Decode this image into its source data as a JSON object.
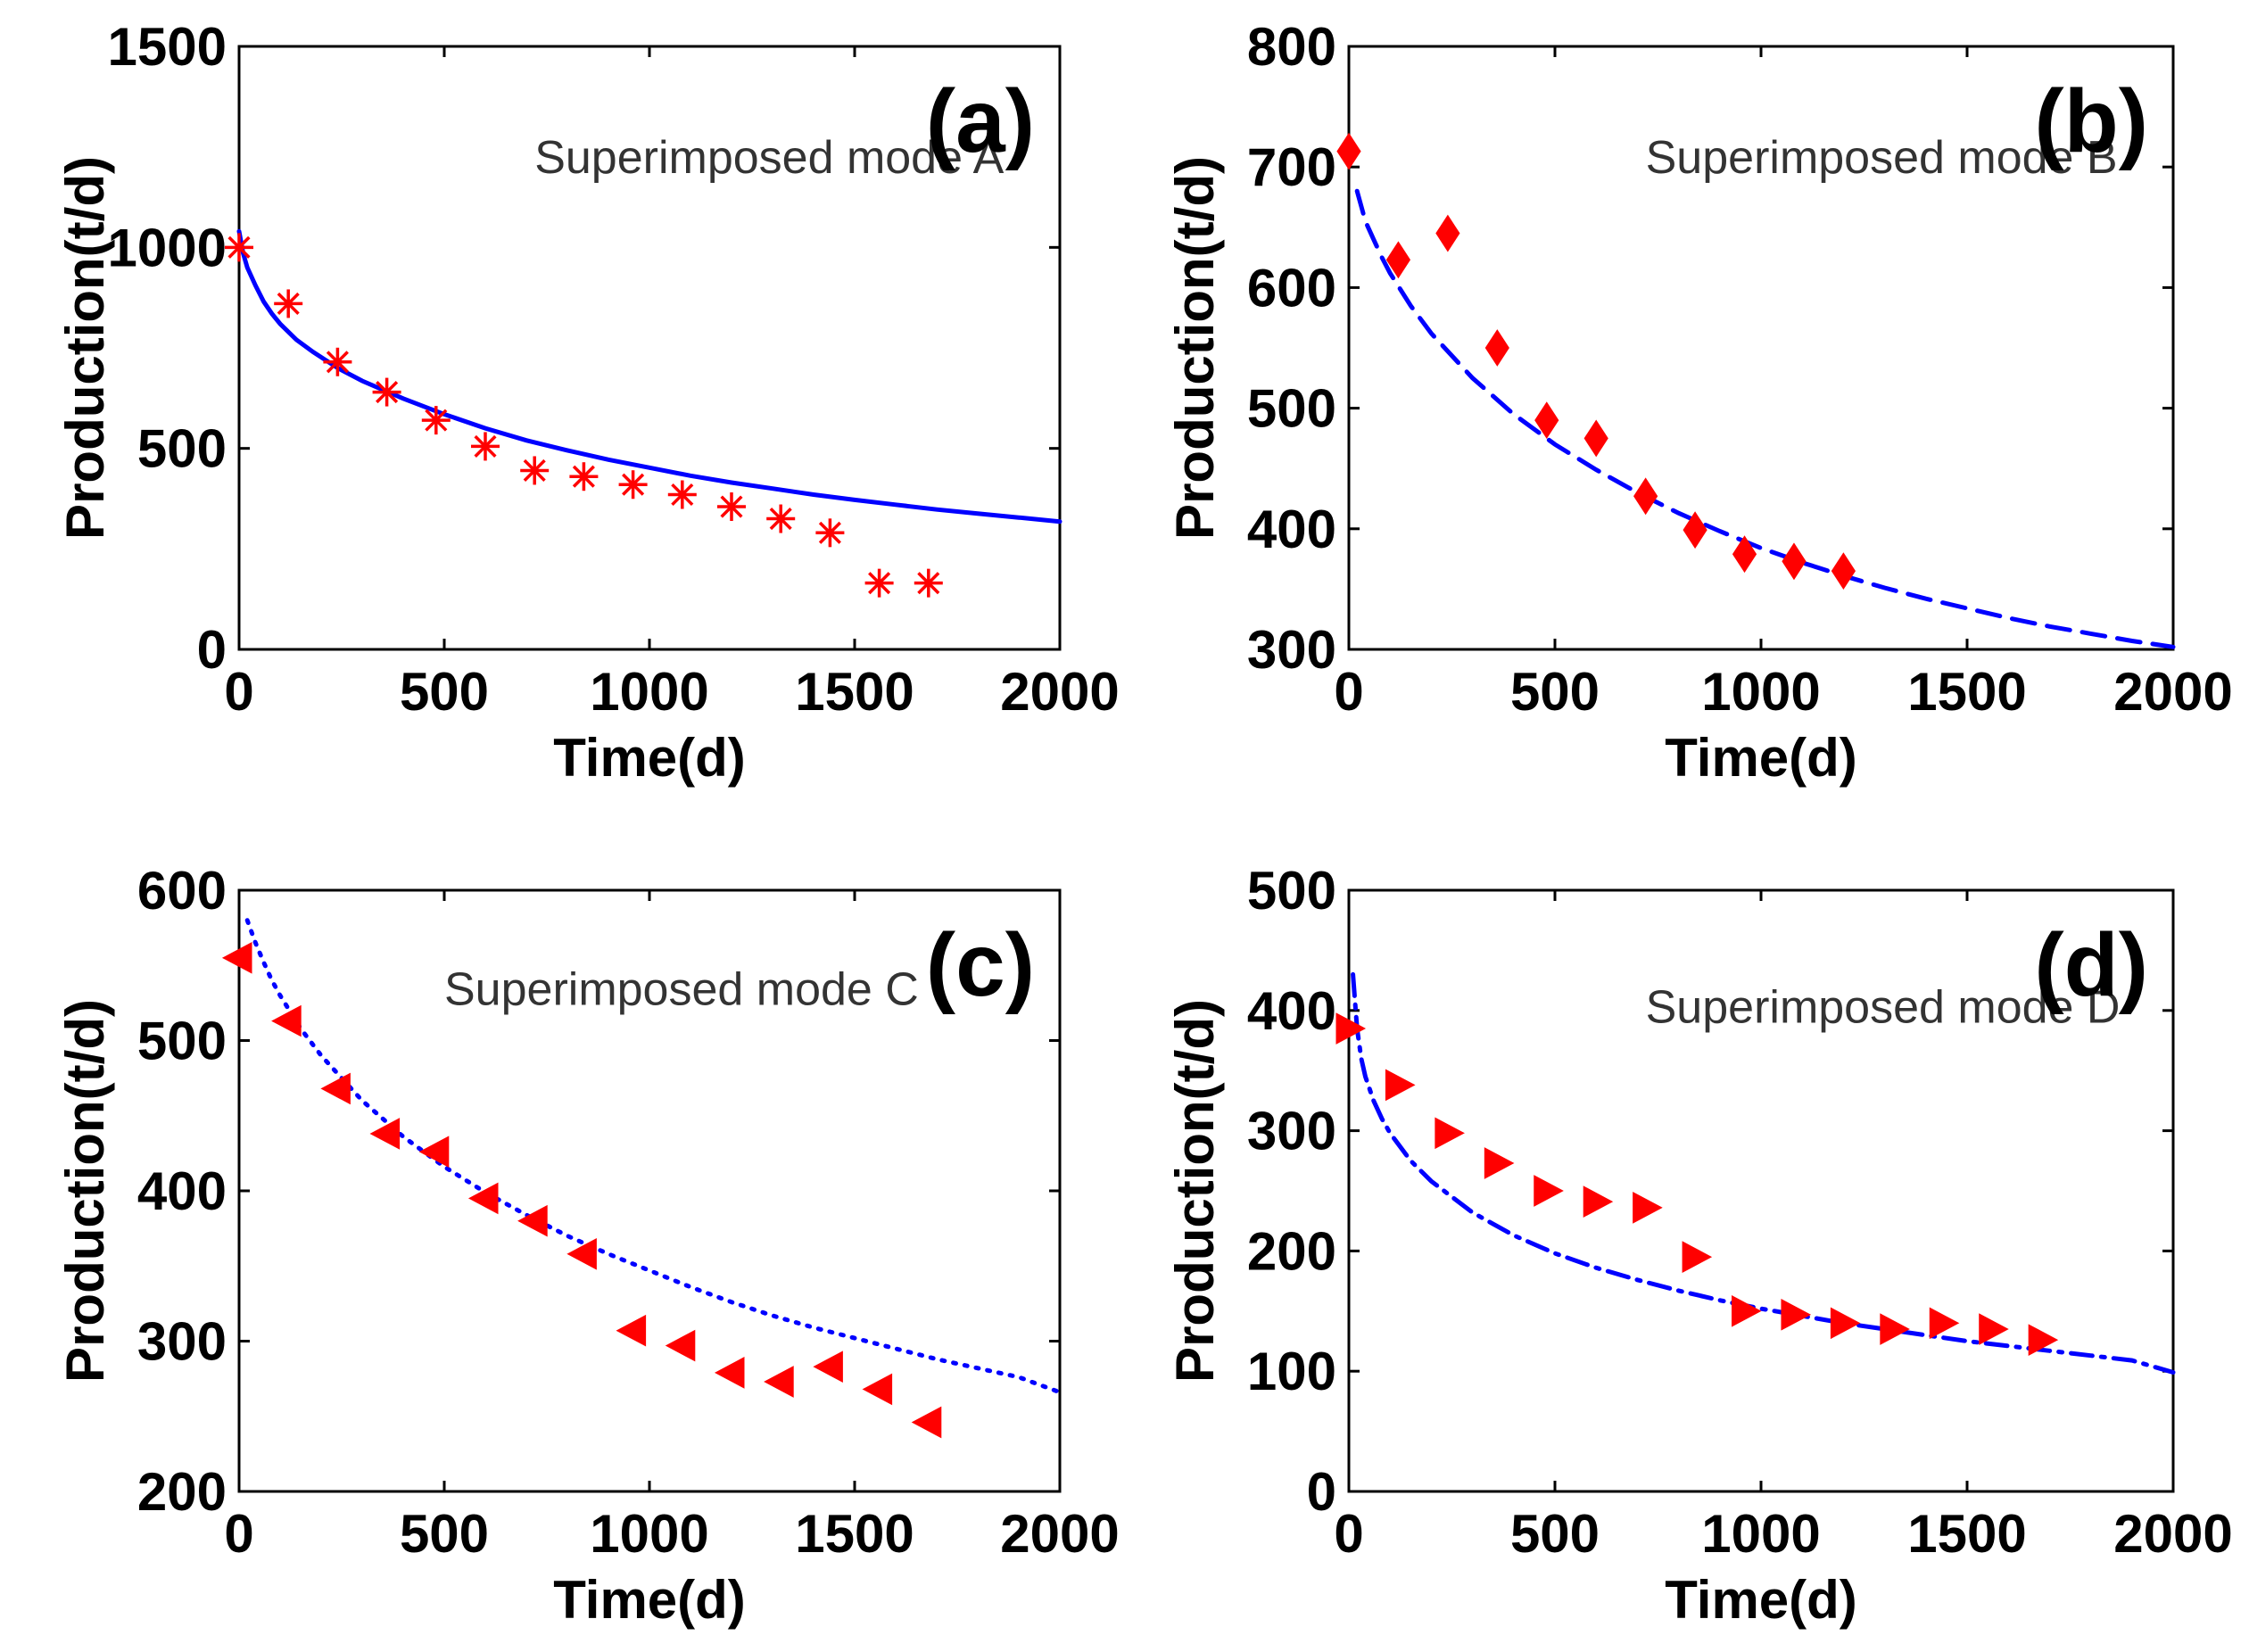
{
  "chart_data": [
    {
      "type": "scatter",
      "panel": "(a)",
      "annotation": "Superimposed mode A",
      "xlabel": "Time(d)",
      "ylabel": "Production(t/d)",
      "xlim": [
        0,
        2000
      ],
      "ylim": [
        0,
        1500
      ],
      "xticks": [
        0,
        500,
        1000,
        1500,
        2000
      ],
      "yticks": [
        0,
        500,
        1000,
        1500
      ],
      "grid": false,
      "observed": {
        "marker": "asterisk",
        "color": "#ff0000",
        "x": [
          0,
          120,
          240,
          360,
          480,
          600,
          720,
          840,
          960,
          1080,
          1200,
          1320,
          1440,
          1560,
          1680
        ],
        "y": [
          1000,
          860,
          715,
          640,
          570,
          505,
          445,
          430,
          410,
          385,
          355,
          325,
          290,
          165,
          165
        ]
      },
      "fit": {
        "style": "solid",
        "color": "#0000ff",
        "x": [
          0,
          10,
          20,
          40,
          60,
          80,
          100,
          140,
          180,
          240,
          300,
          400,
          500,
          600,
          700,
          800,
          900,
          1000,
          1100,
          1200,
          1300,
          1400,
          1500,
          1600,
          1700,
          1800,
          1900,
          2000
        ],
        "y": [
          1040,
          985,
          950,
          905,
          865,
          835,
          810,
          770,
          740,
          700,
          668,
          624,
          585,
          550,
          520,
          495,
          472,
          452,
          432,
          415,
          400,
          385,
          372,
          360,
          348,
          338,
          328,
          318
        ]
      }
    },
    {
      "type": "scatter",
      "panel": "(b)",
      "annotation": "Superimposed mode B",
      "xlabel": "Time(d)",
      "ylabel": "Production(t/d)",
      "xlim": [
        0,
        2000
      ],
      "ylim": [
        300,
        800
      ],
      "xticks": [
        0,
        500,
        1000,
        1500,
        2000
      ],
      "yticks": [
        300,
        400,
        500,
        600,
        700,
        800
      ],
      "grid": false,
      "observed": {
        "marker": "diamond",
        "color": "#ff0000",
        "x": [
          0,
          120,
          240,
          360,
          480,
          600,
          720,
          840,
          960,
          1080,
          1200
        ],
        "y": [
          713,
          623,
          645,
          550,
          490,
          475,
          427,
          399,
          379,
          373,
          365
        ]
      },
      "fit": {
        "style": "dashed",
        "color": "#0000ff",
        "x": [
          20,
          40,
          60,
          80,
          100,
          150,
          200,
          300,
          400,
          500,
          600,
          700,
          800,
          900,
          1000,
          1100,
          1200,
          1300,
          1400,
          1500,
          1600,
          1700,
          1800,
          1900,
          2000
        ],
        "y": [
          680,
          655,
          640,
          625,
          612,
          585,
          562,
          525,
          495,
          470,
          449,
          430,
          413,
          398,
          384,
          372,
          361,
          351,
          342,
          334,
          326,
          319,
          313,
          307,
          302
        ]
      }
    },
    {
      "type": "scatter",
      "panel": "(c)",
      "annotation": "Superimposed mode C",
      "xlabel": "Time(d)",
      "ylabel": "Production(t/d)",
      "xlim": [
        0,
        2000
      ],
      "ylim": [
        200,
        600
      ],
      "xticks": [
        0,
        500,
        1000,
        1500,
        2000
      ],
      "yticks": [
        200,
        300,
        400,
        500,
        600
      ],
      "grid": false,
      "observed": {
        "marker": "triangle-left",
        "color": "#ff0000",
        "x": [
          0,
          120,
          240,
          360,
          480,
          600,
          720,
          840,
          960,
          1080,
          1200,
          1320,
          1440,
          1560,
          1680
        ],
        "y": [
          555,
          513,
          468,
          438,
          426,
          395,
          380,
          358,
          307,
          297,
          279,
          273,
          283,
          268,
          246
        ]
      },
      "fit": {
        "style": "dotted",
        "color": "#0000ff",
        "x": [
          20,
          40,
          60,
          80,
          100,
          150,
          200,
          300,
          400,
          500,
          600,
          700,
          800,
          900,
          1000,
          1100,
          1200,
          1300,
          1400,
          1500,
          1600,
          1700,
          1800,
          1900,
          2000
        ],
        "y": [
          580,
          565,
          552,
          540,
          530,
          508,
          490,
          460,
          436,
          416,
          399,
          384,
          370,
          358,
          347,
          336,
          326,
          317,
          309,
          302,
          295,
          288,
          282,
          276,
          266
        ]
      }
    },
    {
      "type": "scatter",
      "panel": "(d)",
      "annotation": "Superimposed mode D",
      "xlabel": "Time(d)",
      "ylabel": "Production(t/d)",
      "xlim": [
        0,
        2000
      ],
      "ylim": [
        0,
        500
      ],
      "xticks": [
        0,
        500,
        1000,
        1500,
        2000
      ],
      "yticks": [
        0,
        100,
        200,
        300,
        400,
        500
      ],
      "grid": false,
      "observed": {
        "marker": "triangle-right",
        "color": "#ff0000",
        "x": [
          0,
          120,
          240,
          360,
          480,
          600,
          720,
          840,
          960,
          1080,
          1200,
          1320,
          1440,
          1560,
          1680
        ],
        "y": [
          385,
          338,
          298,
          273,
          250,
          241,
          236,
          195,
          150,
          147,
          140,
          135,
          140,
          135,
          126
        ]
      },
      "fit": {
        "style": "dashdot",
        "color": "#0000ff",
        "x": [
          10,
          20,
          30,
          40,
          60,
          80,
          100,
          150,
          200,
          300,
          400,
          500,
          600,
          700,
          800,
          900,
          1000,
          1100,
          1200,
          1300,
          1400,
          1500,
          1600,
          1700,
          1800,
          1900,
          2000
        ],
        "y": [
          430,
          385,
          360,
          345,
          325,
          310,
          298,
          275,
          258,
          232,
          213,
          198,
          186,
          176,
          167,
          159,
          152,
          146,
          140,
          135,
          130,
          125,
          121,
          117,
          113,
          109,
          99
        ]
      }
    }
  ]
}
